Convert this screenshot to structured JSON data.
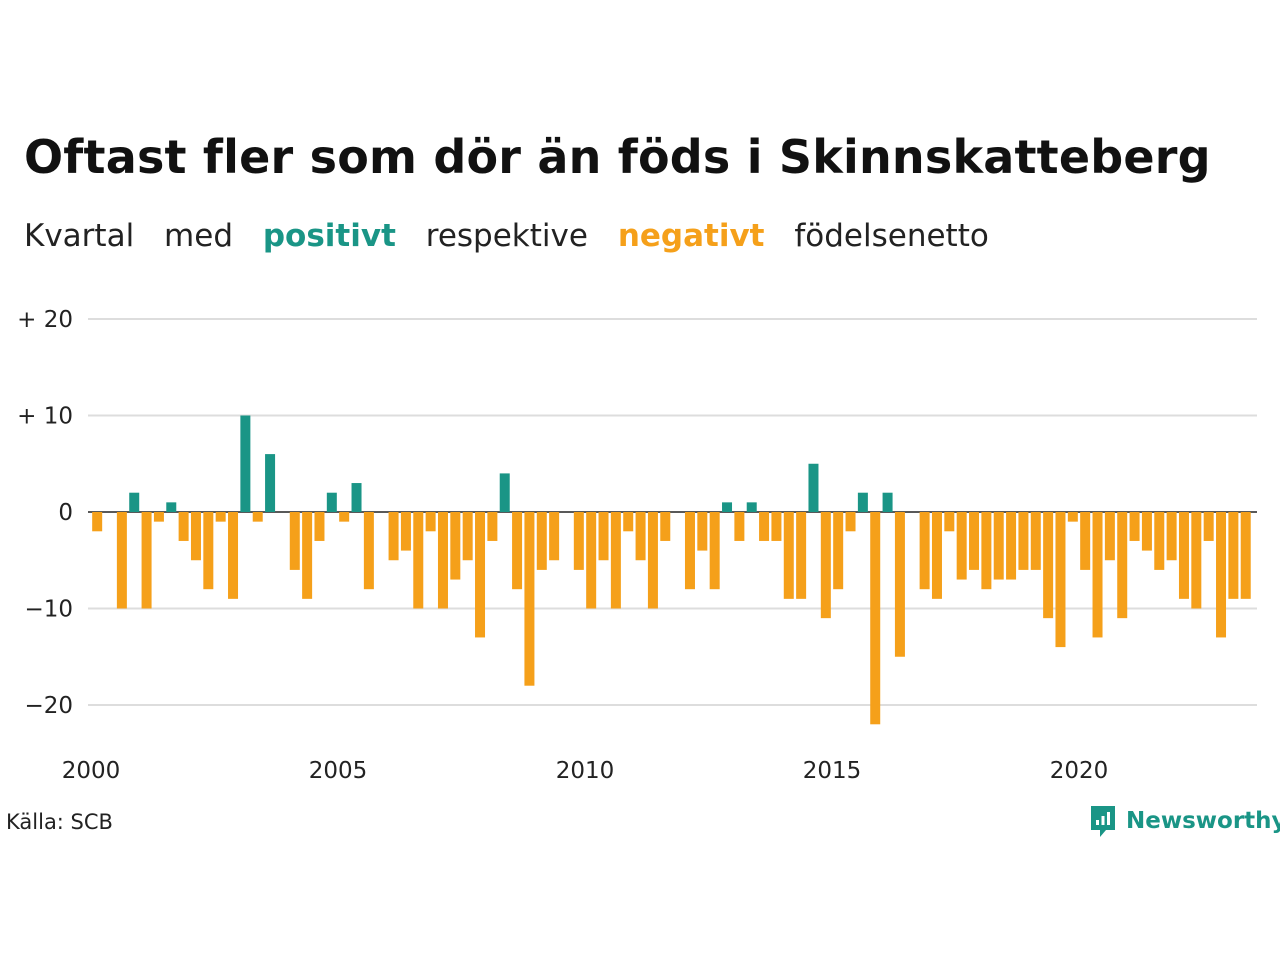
{
  "title": "Oftast fler som dör än föds i Skinnskatteberg",
  "subtitle": {
    "w1": "Kvartal",
    "w2": "med",
    "positive": "positivt",
    "w3": "respektive",
    "negative": "negativt",
    "w4": "födelsenetto"
  },
  "colors": {
    "positive": "#1a9586",
    "negative": "#f5a01a",
    "grid": "#dddddd"
  },
  "source": "Källa: SCB",
  "brand": {
    "name": "Newsworthy",
    "icon": "chart-speech-bubble-icon"
  },
  "chart_data": {
    "type": "bar",
    "x_start": 2000,
    "x_step": "quarter",
    "ylim": [
      -23,
      21
    ],
    "yticks": [
      20,
      10,
      0,
      -10,
      -20
    ],
    "ytick_labels": [
      "+ 20",
      "+ 10",
      "0",
      "−10",
      "−20"
    ],
    "xticks": [
      2000,
      2005,
      2010,
      2015,
      2020
    ],
    "xtick_labels": [
      "2000",
      "2005",
      "2010",
      "2015",
      "2020"
    ],
    "grid": true,
    "values": [
      -2,
      0,
      -10,
      2,
      -10,
      -1,
      1,
      -3,
      -5,
      -8,
      -1,
      -9,
      10,
      -1,
      6,
      0,
      -6,
      -9,
      -3,
      2,
      -1,
      3,
      -8,
      0,
      -5,
      -4,
      -10,
      -2,
      -10,
      -7,
      -5,
      -13,
      -3,
      4,
      -8,
      -18,
      -6,
      -5,
      0,
      -6,
      -10,
      -5,
      -10,
      -2,
      -5,
      -10,
      -3,
      0,
      -8,
      -4,
      -8,
      1,
      -3,
      1,
      -3,
      -3,
      -9,
      -9,
      5,
      -11,
      -8,
      -2,
      2,
      -22,
      2,
      -15,
      0,
      -8,
      -9,
      -2,
      -7,
      -6,
      -8,
      -7,
      -7,
      -6,
      -6,
      -11,
      -14,
      -1,
      -6,
      -13,
      -5,
      -11,
      -3,
      -4,
      -6,
      -5,
      -9,
      -10,
      -3,
      -13,
      -9,
      -9
    ]
  }
}
